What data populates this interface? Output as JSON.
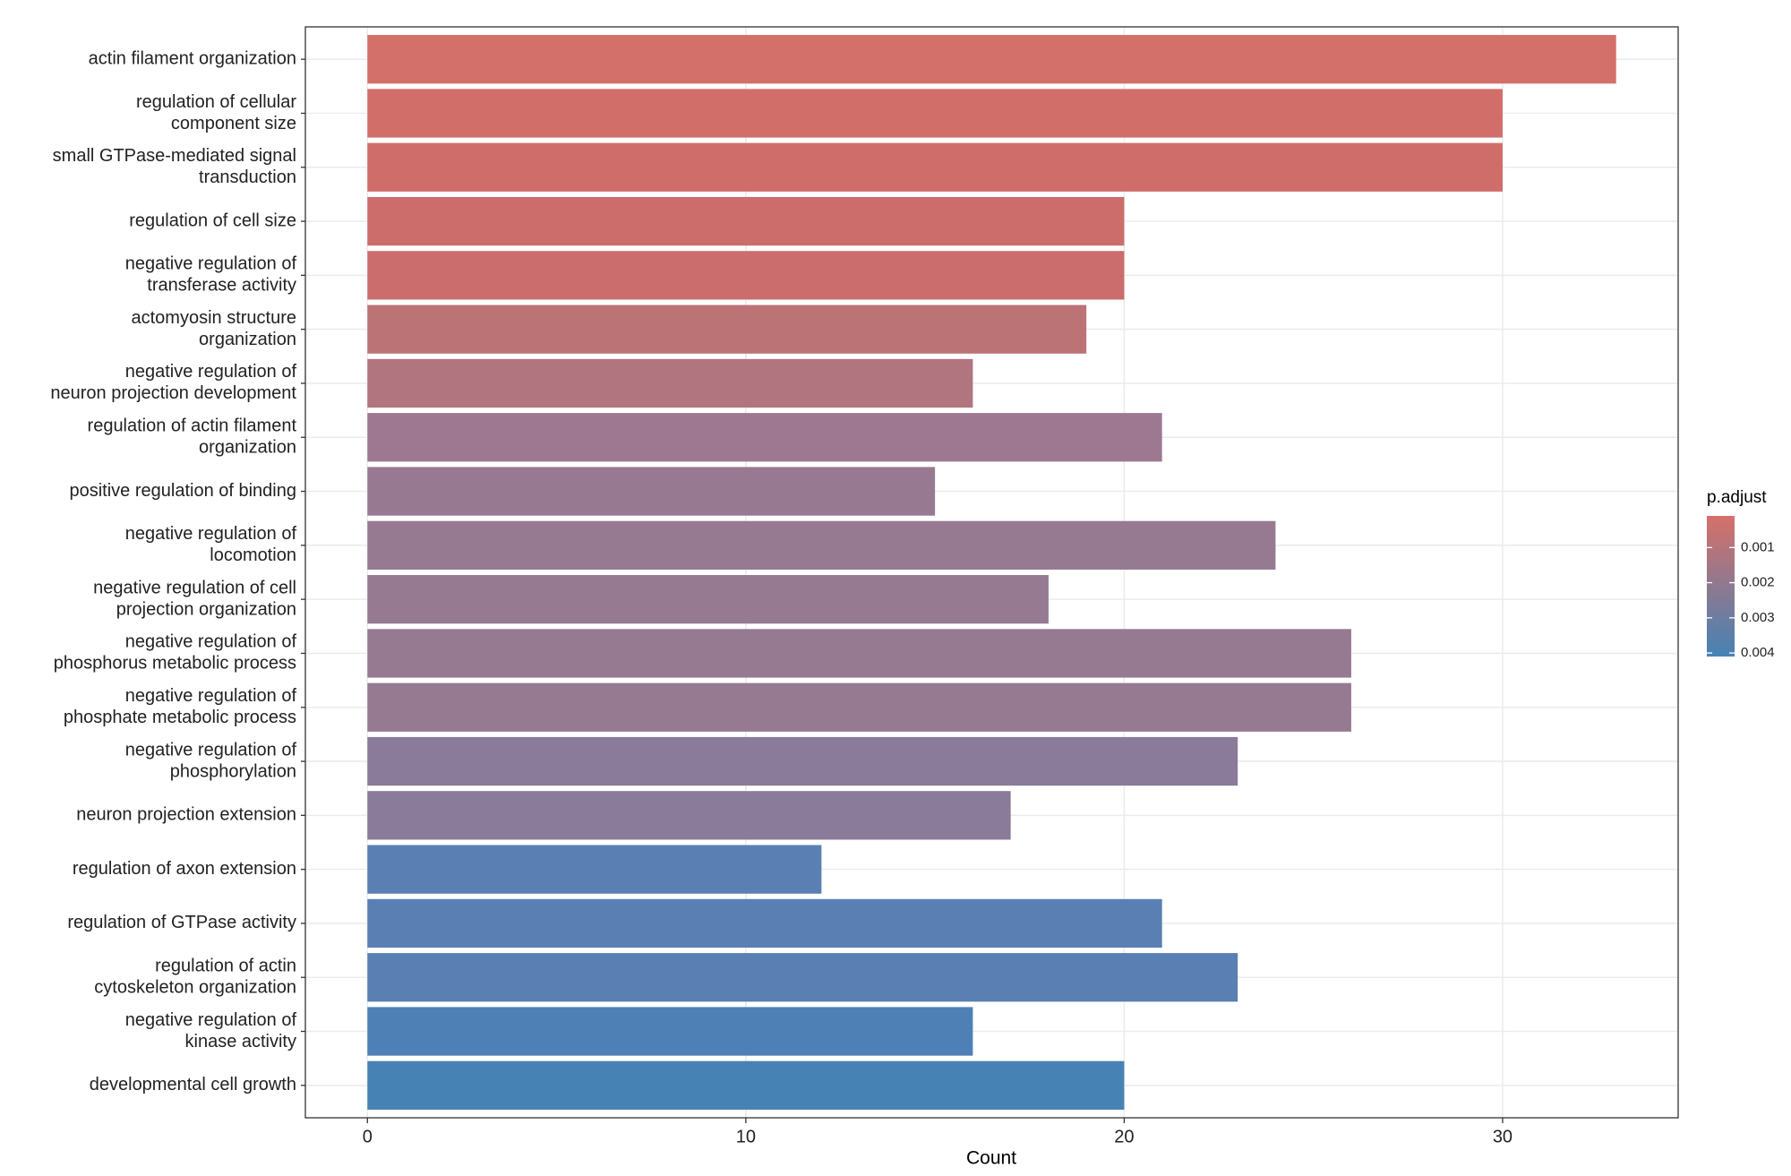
{
  "chart_data": {
    "type": "bar",
    "orientation": "horizontal",
    "categories": [
      [
        "actin filament organization"
      ],
      [
        "regulation of cellular",
        "component size"
      ],
      [
        "small GTPase-mediated signal",
        "transduction"
      ],
      [
        "regulation of cell size"
      ],
      [
        "negative regulation of",
        "transferase activity"
      ],
      [
        "actomyosin structure",
        "organization"
      ],
      [
        "negative regulation of",
        "neuron projection development"
      ],
      [
        "regulation of actin filament",
        "organization"
      ],
      [
        "positive regulation of binding"
      ],
      [
        "negative regulation of",
        "locomotion"
      ],
      [
        "negative regulation of cell",
        "projection organization"
      ],
      [
        "negative regulation of",
        "phosphorus metabolic process"
      ],
      [
        "negative regulation of",
        "phosphate metabolic process"
      ],
      [
        "negative regulation of",
        "phosphorylation"
      ],
      [
        "neuron projection extension"
      ],
      [
        "regulation of axon extension"
      ],
      [
        "regulation of GTPase activity"
      ],
      [
        "regulation of actin",
        "cytoskeleton organization"
      ],
      [
        "negative regulation of",
        "kinase activity"
      ],
      [
        "developmental cell growth"
      ]
    ],
    "values": [
      33,
      30,
      30,
      20,
      20,
      19,
      16,
      21,
      15,
      24,
      18,
      26,
      26,
      23,
      17,
      12,
      21,
      23,
      16,
      20
    ],
    "colors": [
      "#d4706a",
      "#d26e6a",
      "#cf6d6a",
      "#cc6d6c",
      "#cb6d6c",
      "#bb7376",
      "#b0757f",
      "#9d7890",
      "#977a91",
      "#967a91",
      "#967a91",
      "#967a91",
      "#967a91",
      "#897b99",
      "#897b99",
      "#5a7fb3",
      "#5a7fb3",
      "#5a7fb2",
      "#4f80b5",
      "#4682b4"
    ],
    "xlabel": "Count",
    "xlim": [
      -1.64,
      34.64
    ],
    "xticks": [
      0,
      10,
      20,
      30
    ],
    "grid": true,
    "colorbar": {
      "title": "p.adjust",
      "lim": [
        0.0001,
        0.0041
      ],
      "ticks": [
        0.001,
        0.002,
        0.003,
        0.004
      ],
      "colors": [
        "#d6706a",
        "#4682b4"
      ]
    }
  }
}
